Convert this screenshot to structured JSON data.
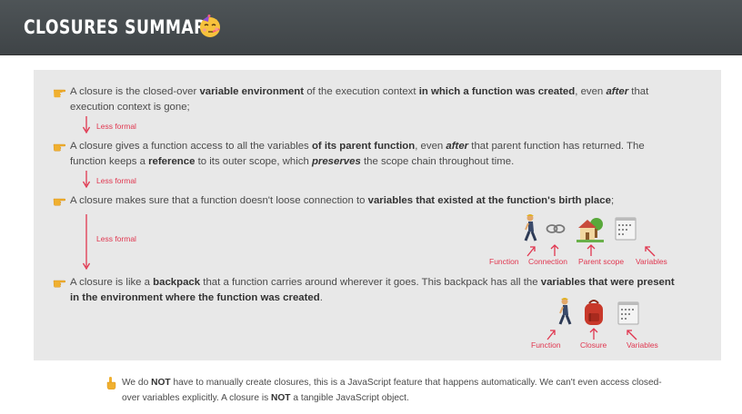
{
  "header": {
    "title": "CLOSURES SUMMARY",
    "emoji": "face-with-party-hat"
  },
  "bullets": [
    {
      "parts": [
        {
          "t": "A closure is the closed-over ",
          "s": "n"
        },
        {
          "t": "variable environment",
          "s": "b"
        },
        {
          "t": " of the execution context ",
          "s": "n"
        },
        {
          "t": "in which a function was created",
          "s": "b"
        },
        {
          "t": ", even ",
          "s": "n"
        },
        {
          "t": "after",
          "s": "bi"
        },
        {
          "t": " that execution context is gone;",
          "s": "n"
        }
      ]
    },
    {
      "parts": [
        {
          "t": "A closure gives a function access to all the variables ",
          "s": "n"
        },
        {
          "t": "of its parent function",
          "s": "b"
        },
        {
          "t": ", even ",
          "s": "n"
        },
        {
          "t": "after",
          "s": "bi"
        },
        {
          "t": " that parent function has returned. The function keeps a ",
          "s": "n"
        },
        {
          "t": "reference",
          "s": "b"
        },
        {
          "t": " to its outer scope, which ",
          "s": "n"
        },
        {
          "t": "preserves",
          "s": "bi"
        },
        {
          "t": " the scope chain throughout time.",
          "s": "n"
        }
      ]
    },
    {
      "parts": [
        {
          "t": "A closure makes sure that a function doesn't loose connection to ",
          "s": "n"
        },
        {
          "t": "variables that existed at the function's birth place",
          "s": "b"
        },
        {
          "t": ";",
          "s": "n"
        }
      ]
    },
    {
      "parts": [
        {
          "t": "A closure is like a ",
          "s": "n"
        },
        {
          "t": "backpack",
          "s": "b"
        },
        {
          "t": " that a function carries around wherever it goes. This backpack has all the ",
          "s": "n"
        },
        {
          "t": "variables that were present in the environment where the function was created",
          "s": "b"
        },
        {
          "t": ".",
          "s": "n"
        }
      ]
    }
  ],
  "less_formal": [
    "Less formal",
    "Less formal",
    "Less formal"
  ],
  "diagram1": {
    "labels": [
      "Function",
      "Connection",
      "Parent scope",
      "Variables"
    ],
    "icons": [
      "person-walking-icon",
      "chain-link-icon",
      "house-icon",
      "notepad-icon"
    ]
  },
  "diagram2": {
    "labels": [
      "Function",
      "Closure",
      "Variables"
    ],
    "icons": [
      "person-walking-icon",
      "backpack-icon",
      "notepad-icon"
    ]
  },
  "footer": {
    "parts": [
      {
        "t": "We do ",
        "s": "n"
      },
      {
        "t": "NOT",
        "s": "b"
      },
      {
        "t": " have to manually create closures, this is a JavaScript feature that happens automatically. We can't even access closed-over variables explicitly. A closure is ",
        "s": "n"
      },
      {
        "t": "NOT",
        "s": "b"
      },
      {
        "t": " a tangible JavaScript object.",
        "s": "n"
      }
    ]
  },
  "colors": {
    "accent": "#e0364f",
    "header_bg": "#44494c",
    "panel_bg": "#e8e8e8",
    "hand": "#f0b030"
  }
}
